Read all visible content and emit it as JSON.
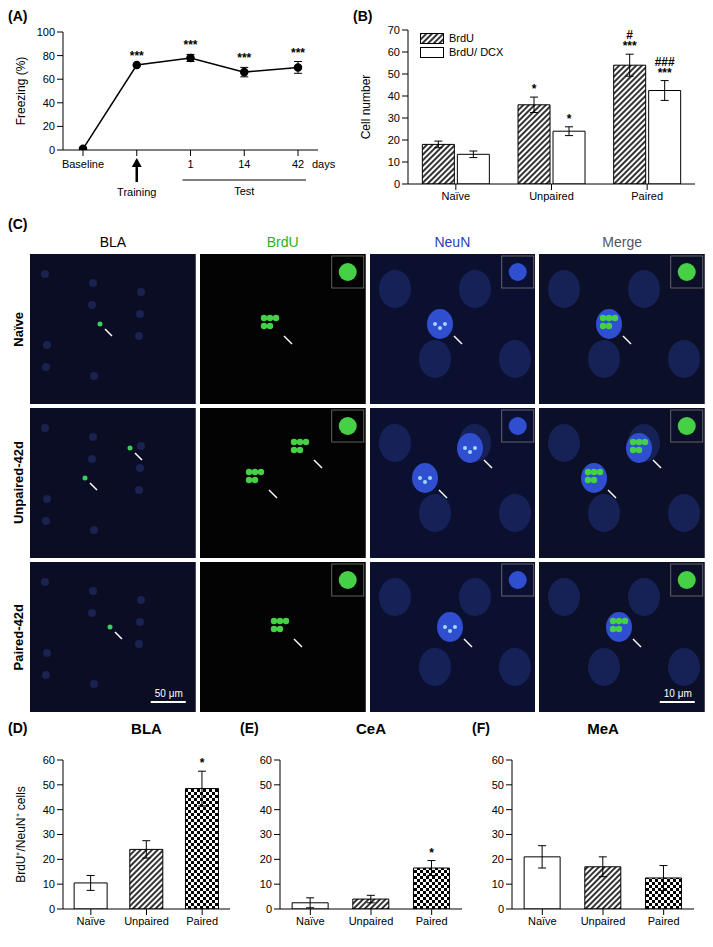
{
  "chart_data": [
    {
      "panel_label": "(A)",
      "type": "line",
      "categories": [
        "Baseline",
        null,
        "1",
        "14",
        "42"
      ],
      "values": [
        1,
        72,
        78,
        66,
        70
      ],
      "errors": [
        0,
        0,
        3,
        4,
        5
      ],
      "color": "#000000",
      "marker": "circle",
      "y_label": "Freezing (%)",
      "ylim": [
        0,
        100
      ],
      "yticks": [
        0,
        20,
        40,
        60,
        80,
        100
      ],
      "annotations": [
        {
          "category_index": 1,
          "text": "***"
        },
        {
          "category_index": 2,
          "text": "***"
        },
        {
          "category_index": 3,
          "text": "***"
        },
        {
          "category_index": 4,
          "text": "***"
        }
      ],
      "arrow_label": {
        "category_index": 1,
        "text": "Training"
      },
      "bracket_label": {
        "from_index": 2,
        "to_index": 4,
        "text": "Test"
      },
      "unit_label": {
        "category_index": 4,
        "text": "days"
      }
    },
    {
      "panel_label": "(B)",
      "type": "bar",
      "categories": [
        "Naïve",
        "Unpaired",
        "Paired"
      ],
      "series": [
        {
          "name": "BrdU",
          "color": "#000000",
          "values": [
            18,
            36,
            54
          ],
          "errors": [
            1.5,
            3.5,
            5
          ]
        },
        {
          "name": "BrdU/ DCX",
          "color": "#ffffff",
          "values": [
            13.5,
            24,
            42.5
          ],
          "errors": [
            1.5,
            2,
            4.5
          ]
        }
      ],
      "y_label": "Cell number",
      "ylim": [
        0,
        70
      ],
      "yticks": [
        0,
        10,
        20,
        30,
        40,
        50,
        60,
        70
      ],
      "legend": "upper left",
      "annotations": [
        {
          "category": "Unpaired",
          "series": "BrdU",
          "text": "*"
        },
        {
          "category": "Unpaired",
          "series": "BrdU/ DCX",
          "text": "*"
        },
        {
          "category": "Paired",
          "series": "BrdU",
          "text": "***"
        },
        {
          "category": "Paired",
          "series": "BrdU",
          "text": "#"
        },
        {
          "category": "Paired",
          "series": "BrdU/ DCX",
          "text": "***"
        },
        {
          "category": "Paired",
          "series": "BrdU/ DCX",
          "text": "###"
        }
      ]
    },
    {
      "panel_label": "(D)",
      "type": "bar",
      "title": "BLA",
      "categories": [
        "Naïve",
        "Unpaired",
        "Paired"
      ],
      "values": [
        10.5,
        24,
        48.5
      ],
      "errors": [
        3,
        3.5,
        7
      ],
      "colors": [
        "#ffffff",
        "#000000",
        "#000000"
      ],
      "y_label": "BrdU⁺/NeuN⁺ cells",
      "ylim": [
        0,
        60
      ],
      "yticks": [
        0,
        10,
        20,
        30,
        40,
        50,
        60
      ],
      "annotations": [
        {
          "category": "Paired",
          "text": "*"
        }
      ]
    },
    {
      "panel_label": "(E)",
      "type": "bar",
      "title": "CeA",
      "categories": [
        "Naïve",
        "Unpaired",
        "Paired"
      ],
      "values": [
        2.5,
        4,
        16.5
      ],
      "errors": [
        2,
        1.5,
        3
      ],
      "colors": [
        "#ffffff",
        "#000000",
        "#000000"
      ],
      "ylim": [
        0,
        60
      ],
      "yticks": [
        0,
        10,
        20,
        30,
        40,
        50,
        60
      ],
      "annotations": [
        {
          "category": "Paired",
          "text": "*"
        }
      ]
    },
    {
      "panel_label": "(F)",
      "type": "bar",
      "title": "MeA",
      "categories": [
        "Naïve",
        "Unpaired",
        "Paired"
      ],
      "values": [
        21,
        17,
        12.5
      ],
      "errors": [
        4.5,
        4,
        5
      ],
      "colors": [
        "#ffffff",
        "#000000",
        "#000000"
      ],
      "ylim": [
        0,
        60
      ],
      "yticks": [
        0,
        10,
        20,
        30,
        40,
        50,
        60
      ],
      "annotations": []
    }
  ],
  "image_panel": {
    "panel_label": "(C)",
    "columns": [
      {
        "label": "BLA",
        "color": "#000000"
      },
      {
        "label": "BrdU",
        "color": "#22b522"
      },
      {
        "label": "NeuN",
        "color": "#1f3fbf"
      },
      {
        "label": "Merge",
        "color": "#555555"
      }
    ],
    "rows": [
      "Naïve",
      "Unpaired-42d",
      "Paired-42d"
    ],
    "scale_bars": [
      {
        "row": 2,
        "column": 0,
        "text": "50 μm"
      },
      {
        "row": 2,
        "column": 3,
        "text": "10 μm"
      }
    ]
  }
}
